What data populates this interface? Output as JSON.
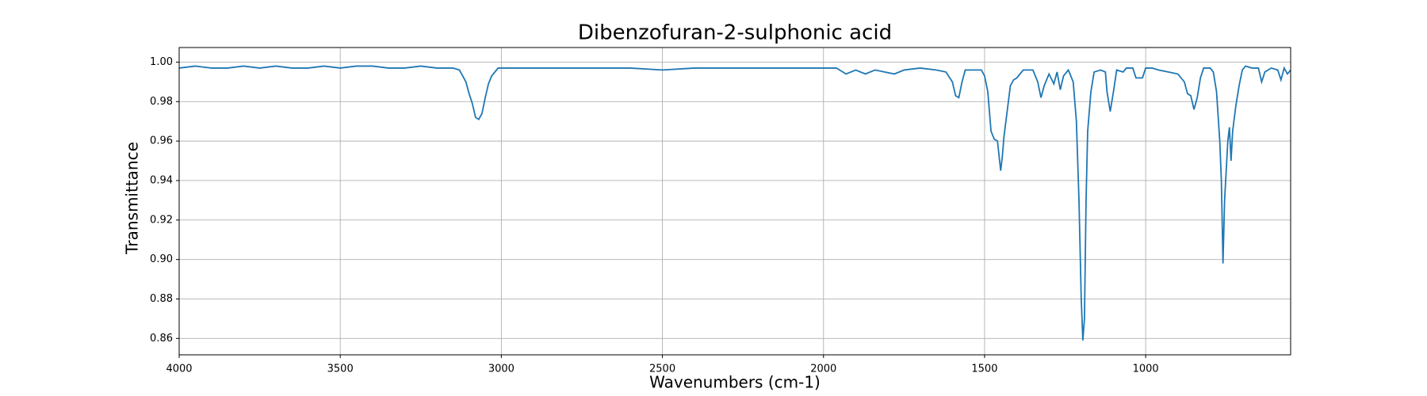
{
  "chart_data": {
    "type": "line",
    "title": "Dibenzofuran-2-sulphonic acid",
    "x_label": "Wavenumbers (cm-1)",
    "y_label": "Transmittance",
    "xlim": [
      4000,
      550
    ],
    "ylim": [
      0.8517,
      1.0074
    ],
    "xticks": [
      4000,
      3500,
      3000,
      2500,
      2000,
      1500,
      1000
    ],
    "yticks": [
      {
        "value": 0.86,
        "label": "0.86"
      },
      {
        "value": 0.88,
        "label": "0.88"
      },
      {
        "value": 0.9,
        "label": "0.90"
      },
      {
        "value": 0.92,
        "label": "0.92"
      },
      {
        "value": 0.94,
        "label": "0.94"
      },
      {
        "value": 0.96,
        "label": "0.96"
      },
      {
        "value": 0.98,
        "label": "0.98"
      },
      {
        "value": 1.0,
        "label": "1.00"
      }
    ],
    "grid": true,
    "series": [
      {
        "color": "#1f77b4",
        "x": [
          4000,
          3950,
          3900,
          3850,
          3800,
          3750,
          3700,
          3650,
          3600,
          3550,
          3500,
          3450,
          3400,
          3350,
          3300,
          3250,
          3200,
          3150,
          3130,
          3110,
          3100,
          3090,
          3080,
          3070,
          3060,
          3050,
          3040,
          3030,
          3010,
          2950,
          2900,
          2800,
          2700,
          2600,
          2500,
          2400,
          2300,
          2200,
          2100,
          2000,
          1960,
          1930,
          1900,
          1870,
          1840,
          1780,
          1750,
          1700,
          1650,
          1620,
          1600,
          1590,
          1580,
          1570,
          1560,
          1510,
          1500,
          1490,
          1480,
          1470,
          1460,
          1450,
          1445,
          1440,
          1430,
          1420,
          1410,
          1400,
          1380,
          1350,
          1335,
          1325,
          1315,
          1300,
          1285,
          1275,
          1265,
          1255,
          1240,
          1225,
          1215,
          1207,
          1200,
          1195,
          1190,
          1185,
          1180,
          1170,
          1160,
          1140,
          1125,
          1120,
          1110,
          1100,
          1090,
          1070,
          1060,
          1040,
          1030,
          1010,
          1000,
          980,
          960,
          930,
          900,
          880,
          870,
          860,
          850,
          840,
          830,
          820,
          800,
          790,
          780,
          770,
          765,
          760,
          755,
          750,
          745,
          740,
          735,
          730,
          720,
          710,
          700,
          690,
          670,
          650,
          640,
          630,
          610,
          590,
          580,
          570,
          560,
          550
        ],
        "values": [
          0.997,
          0.998,
          0.997,
          0.997,
          0.998,
          0.997,
          0.998,
          0.997,
          0.997,
          0.998,
          0.997,
          0.998,
          0.998,
          0.997,
          0.997,
          0.998,
          0.997,
          0.997,
          0.996,
          0.99,
          0.984,
          0.979,
          0.972,
          0.971,
          0.974,
          0.982,
          0.989,
          0.993,
          0.997,
          0.997,
          0.997,
          0.997,
          0.997,
          0.997,
          0.996,
          0.997,
          0.997,
          0.997,
          0.997,
          0.997,
          0.997,
          0.994,
          0.996,
          0.994,
          0.996,
          0.994,
          0.996,
          0.997,
          0.996,
          0.995,
          0.99,
          0.983,
          0.982,
          0.99,
          0.996,
          0.996,
          0.993,
          0.985,
          0.965,
          0.961,
          0.96,
          0.945,
          0.952,
          0.962,
          0.975,
          0.988,
          0.991,
          0.992,
          0.996,
          0.996,
          0.99,
          0.982,
          0.988,
          0.994,
          0.989,
          0.995,
          0.986,
          0.993,
          0.996,
          0.99,
          0.97,
          0.93,
          0.88,
          0.859,
          0.87,
          0.93,
          0.965,
          0.985,
          0.995,
          0.996,
          0.995,
          0.985,
          0.975,
          0.985,
          0.996,
          0.995,
          0.997,
          0.997,
          0.992,
          0.992,
          0.997,
          0.997,
          0.996,
          0.995,
          0.994,
          0.99,
          0.984,
          0.983,
          0.976,
          0.982,
          0.992,
          0.997,
          0.997,
          0.995,
          0.985,
          0.96,
          0.94,
          0.898,
          0.93,
          0.945,
          0.96,
          0.967,
          0.95,
          0.965,
          0.978,
          0.988,
          0.996,
          0.998,
          0.997,
          0.997,
          0.99,
          0.995,
          0.997,
          0.996,
          0.991,
          0.997,
          0.994,
          0.996
        ]
      }
    ]
  }
}
